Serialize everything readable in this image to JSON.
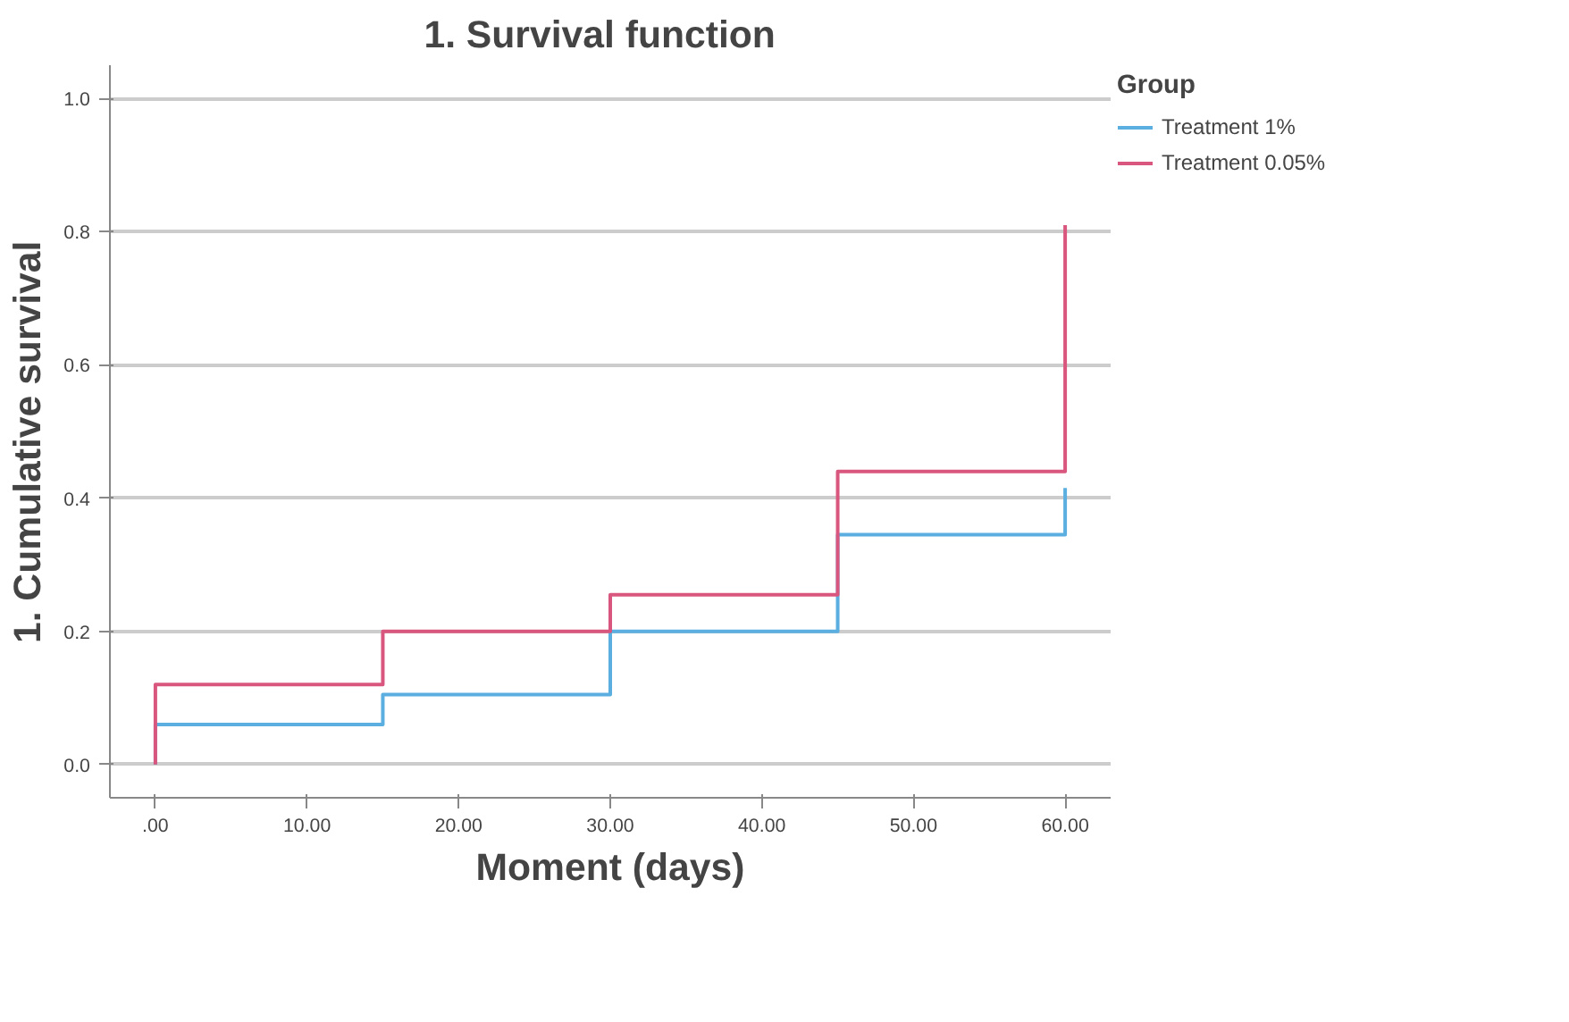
{
  "chart_data": {
    "type": "step",
    "title": "1.   Survival function",
    "xlabel": "Moment (days)",
    "ylabel": "1.   Cumulative survival",
    "legend_title": "Group",
    "legend": "top right",
    "grid": "y",
    "xlim": [
      -3,
      63
    ],
    "xticks": [
      {
        "value": 0,
        "label": ".00"
      },
      {
        "value": 10,
        "label": "10.00"
      },
      {
        "value": 20,
        "label": "20.00"
      },
      {
        "value": 30,
        "label": "30.00"
      },
      {
        "value": 40,
        "label": "40.00"
      },
      {
        "value": 50,
        "label": "50.00"
      },
      {
        "value": 60,
        "label": "60.00"
      }
    ],
    "ylim": [
      -0.05,
      1.05
    ],
    "yticks": [
      {
        "value": 0,
        "label": "0.0"
      },
      {
        "value": 0.2,
        "label": "0.2"
      },
      {
        "value": 0.4,
        "label": "0.4"
      },
      {
        "value": 0.6,
        "label": "0.6"
      },
      {
        "value": 0.8,
        "label": "0.8"
      },
      {
        "value": 1,
        "label": "1.0"
      }
    ],
    "x": [
      0,
      0,
      15,
      30,
      45,
      60
    ],
    "series": [
      {
        "name": "Treatment 1%",
        "color": "#5aaee0",
        "values": [
          0,
          0.06,
          0.105,
          0.2,
          0.345,
          0.415
        ]
      },
      {
        "name": "Treatment 0.05%",
        "color": "#d9577f",
        "values": [
          0,
          0.12,
          0.2,
          0.255,
          0.44,
          0.81
        ]
      }
    ]
  }
}
